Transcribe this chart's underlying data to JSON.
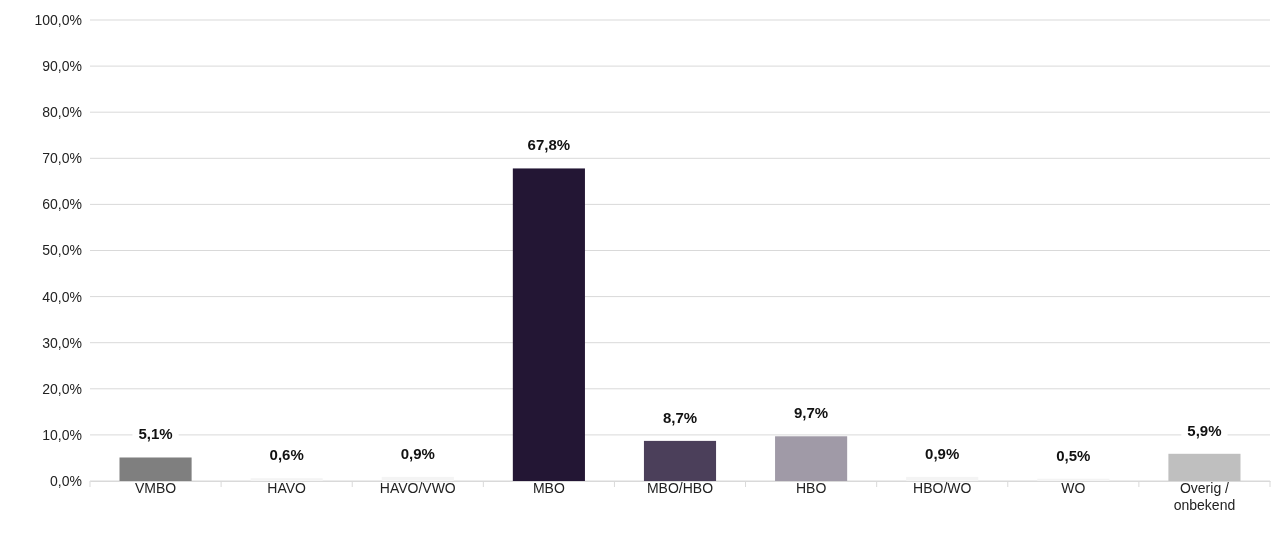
{
  "chart_data": {
    "type": "bar",
    "categories": [
      "VMBO",
      "HAVO",
      "HAVO/VWO",
      "MBO",
      "MBO/HBO",
      "HBO",
      "HBO/WO",
      "WO",
      "Overig / onbekend"
    ],
    "values": [
      5.1,
      0.6,
      0.9,
      67.8,
      8.7,
      9.7,
      0.9,
      0.5,
      5.9
    ],
    "colors": [
      "#7f7f7f",
      "#f4f4f4",
      "#f4f4f4",
      "#231634",
      "#4b3f5a",
      "#a09aa7",
      "#f4f4f4",
      "#f4f4f4",
      "#bfbfbf"
    ],
    "value_labels": [
      "5,1%",
      "0,6%",
      "0,9%",
      "67,8%",
      "8,7%",
      "9,7%",
      "0,9%",
      "0,5%",
      "5,9%"
    ],
    "ylim": [
      0,
      100
    ],
    "yticks": [
      {
        "value": 0,
        "label": "0,0%"
      },
      {
        "value": 10,
        "label": "10,0%"
      },
      {
        "value": 20,
        "label": "20,0%"
      },
      {
        "value": 30,
        "label": "30,0%"
      },
      {
        "value": 40,
        "label": "40,0%"
      },
      {
        "value": 50,
        "label": "50,0%"
      },
      {
        "value": 60,
        "label": "60,0%"
      },
      {
        "value": 70,
        "label": "70,0%"
      },
      {
        "value": 80,
        "label": "80,0%"
      },
      {
        "value": 90,
        "label": "90,0%"
      },
      {
        "value": 100,
        "label": "100,0%"
      }
    ],
    "grid": "y"
  }
}
